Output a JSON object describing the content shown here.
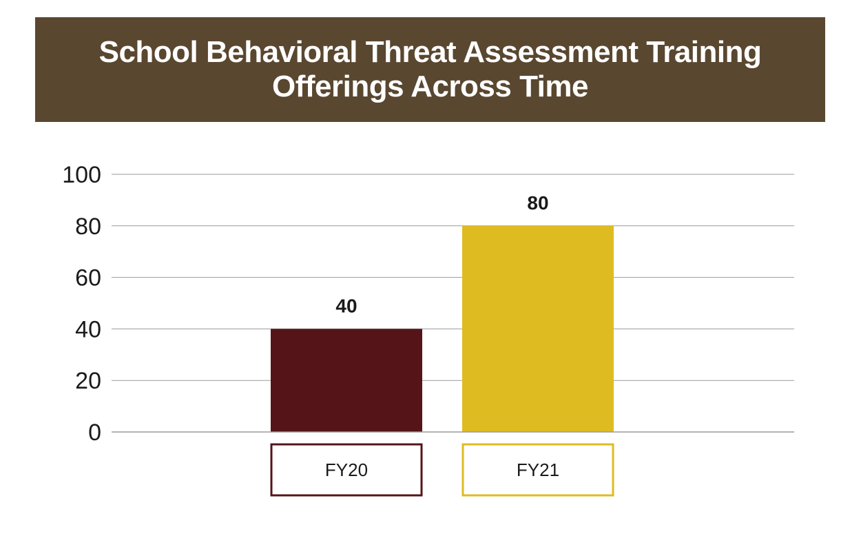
{
  "title": "School Behavioral Threat Assessment Training Offerings Across Time",
  "colors": {
    "banner": "#5a4730",
    "gridline": "#9a9a9a",
    "series": [
      "#541418",
      "#dfbb22"
    ]
  },
  "chart_data": {
    "type": "bar",
    "title": "School Behavioral Threat Assessment Training Offerings Across Time",
    "categories": [
      "FY20",
      "FY21"
    ],
    "values": [
      40,
      80
    ],
    "data_labels": [
      "40",
      "80"
    ],
    "y_ticks": [
      "0",
      "20",
      "40",
      "60",
      "80",
      "100"
    ],
    "ylim": [
      0,
      100
    ],
    "xlabel": "",
    "ylabel": "",
    "grid": true,
    "legend": "none"
  }
}
